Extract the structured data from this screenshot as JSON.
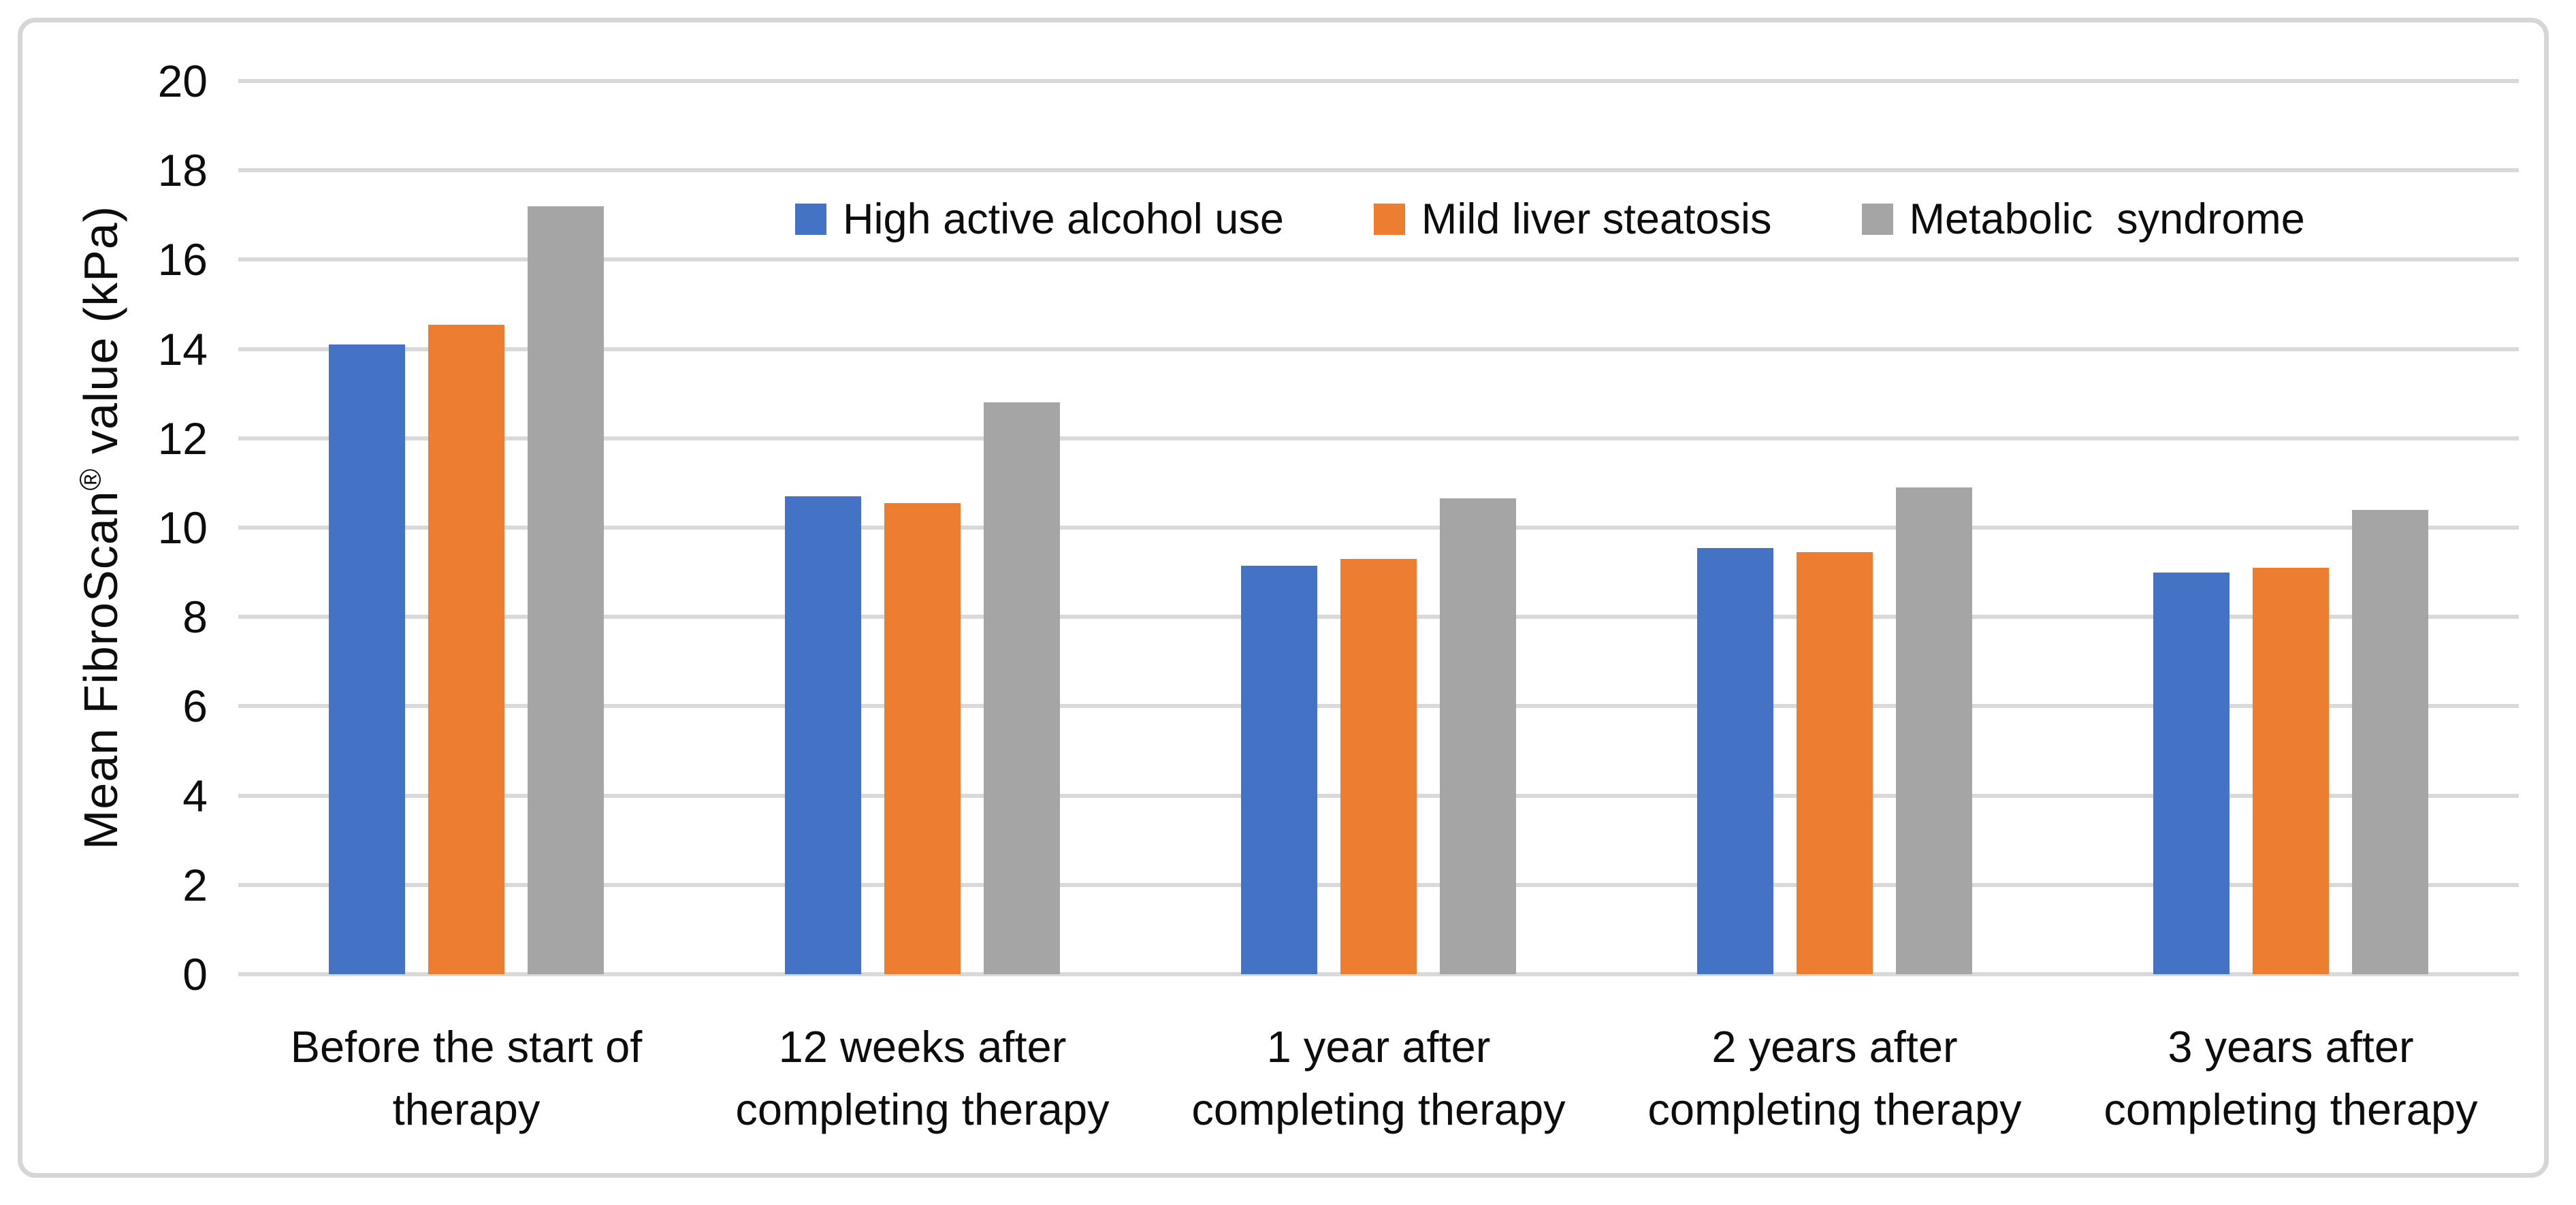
{
  "figure": {
    "y_axis_title": {
      "prefix": "Mean FibroScan",
      "registered": "®",
      "suffix": " value (kPa)"
    }
  },
  "colors": {
    "gridline": "#d9d9d9",
    "frame_border": "#d6d6d6",
    "text": "#0d0d0d",
    "background": "#ffffff"
  },
  "chart_data": {
    "type": "bar",
    "title": "",
    "xlabel": "",
    "ylabel": "Mean FibroScan® value (kPa)",
    "ylim": [
      0,
      20
    ],
    "yticks": [
      0,
      2,
      4,
      6,
      8,
      10,
      12,
      14,
      16,
      18,
      20
    ],
    "grid": true,
    "legend_position": "top",
    "categories": [
      "Before the start of\ntherapy",
      "12 weeks after\ncompleting therapy",
      "1 year after\ncompleting therapy",
      "2 years after\ncompleting therapy",
      "3 years after\ncompleting therapy"
    ],
    "series": [
      {
        "name": "High active alcohol use",
        "color": "#4472C4",
        "values": [
          14.1,
          10.7,
          9.15,
          9.55,
          9.0
        ]
      },
      {
        "name": "Mild liver steatosis",
        "color": "#ED7D31",
        "values": [
          14.55,
          10.55,
          9.3,
          9.45,
          9.1
        ]
      },
      {
        "name": "Metabolic  syndrome",
        "color": "#A5A5A5",
        "values": [
          17.2,
          12.8,
          10.65,
          10.9,
          10.4
        ]
      }
    ]
  }
}
